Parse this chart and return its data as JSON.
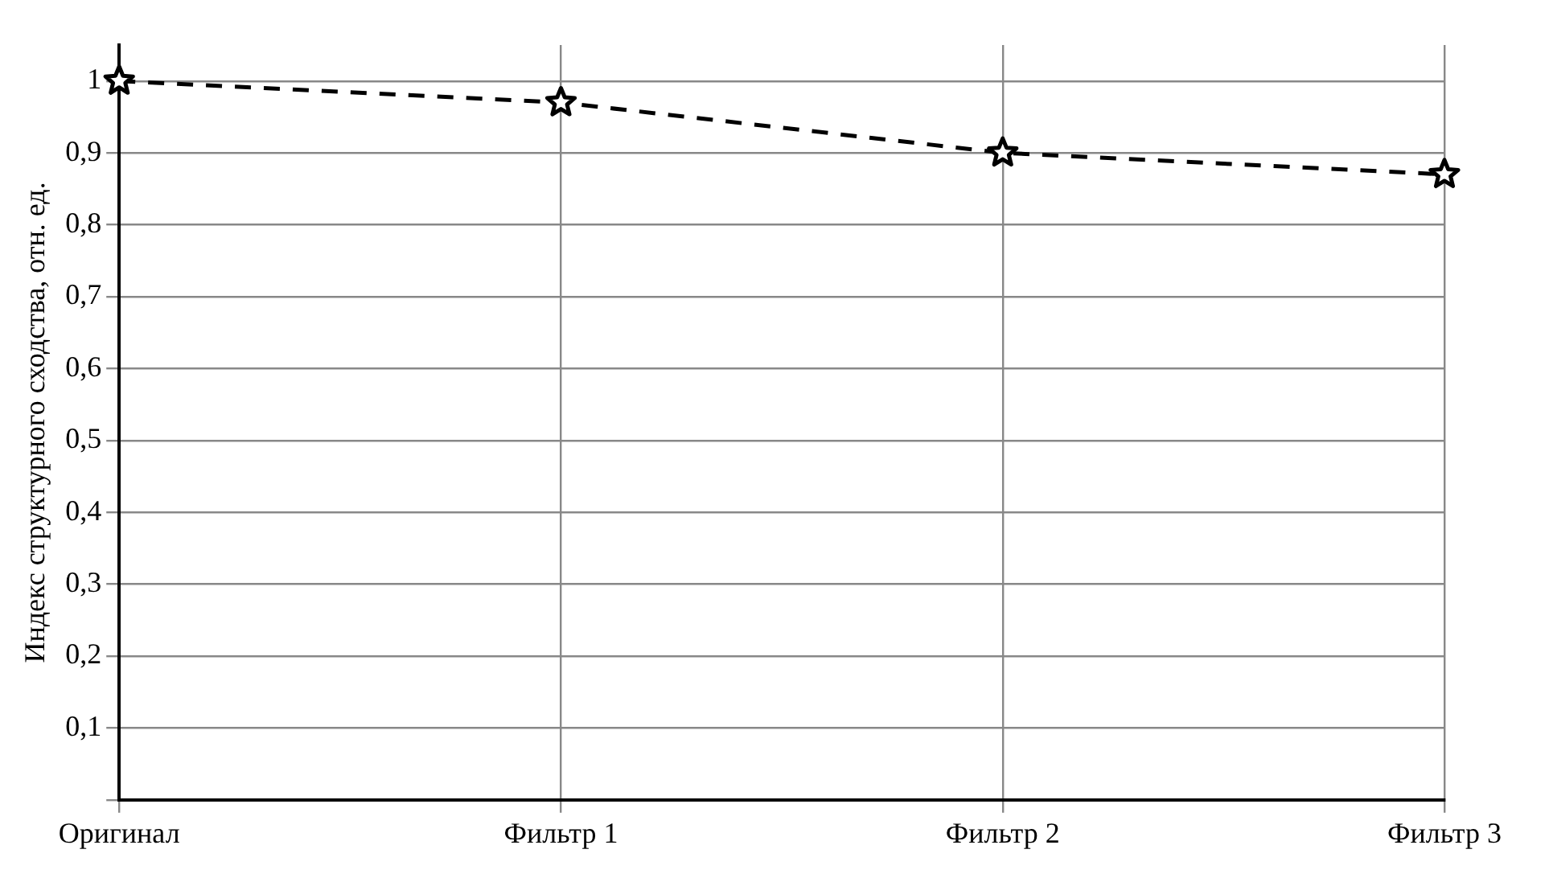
{
  "chart_data": {
    "type": "line",
    "ylabel": "Индекс структурного сходства, отн. ед.",
    "categories": [
      "Оригинал",
      "Фильтр 1",
      "Фильтр 2",
      "Фильтр 3"
    ],
    "series": [
      {
        "color": "#000000",
        "values": [
          1,
          0.97,
          0.9,
          0.87
        ]
      }
    ],
    "ylim": [
      0,
      1.05
    ],
    "yticks": [
      {
        "value": 0,
        "label": null
      },
      {
        "value": 0.1,
        "label": "0,1"
      },
      {
        "value": 0.2,
        "label": "0,2"
      },
      {
        "value": 0.3,
        "label": "0,3"
      },
      {
        "value": 0.4,
        "label": "0,4"
      },
      {
        "value": 0.5,
        "label": "0,5"
      },
      {
        "value": 0.6,
        "label": "0,6"
      },
      {
        "value": 0.7,
        "label": "0,7"
      },
      {
        "value": 0.8,
        "label": "0,8"
      },
      {
        "value": 0.9,
        "label": "0,9"
      },
      {
        "value": 1,
        "label": "1"
      }
    ],
    "grid": true,
    "marker": "star",
    "line_style": "dashed",
    "legend": false
  }
}
